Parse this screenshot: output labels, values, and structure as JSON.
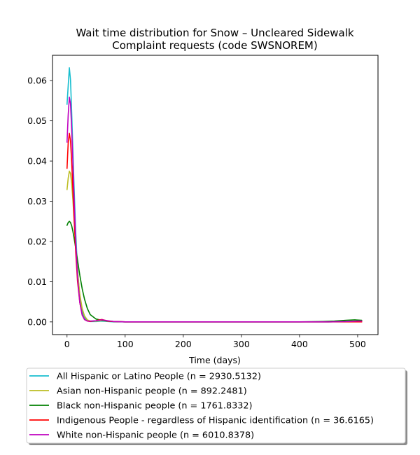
{
  "chart_data": {
    "type": "line",
    "title_lines": [
      "Wait time distribution  for Snow – Uncleared Sidewalk",
      "Complaint  requests (code SWSNOREM)"
    ],
    "xlabel": "Time (days)",
    "ylabel": "",
    "xlim": [
      -25,
      535
    ],
    "ylim": [
      -0.00316,
      0.0663
    ],
    "xticks": [
      0,
      100,
      200,
      300,
      400,
      500
    ],
    "xtick_labels": [
      "0",
      "100",
      "200",
      "300",
      "400",
      "500"
    ],
    "yticks": [
      0.0,
      0.01,
      0.02,
      0.03,
      0.04,
      0.05,
      0.06
    ],
    "ytick_labels": [
      "0.00",
      "0.01",
      "0.02",
      "0.03",
      "0.04",
      "0.05",
      "0.06"
    ],
    "grid": false,
    "legend_position": "below plot",
    "series": [
      {
        "name": "All Hispanic or Latino People (n = 2930.5132)",
        "color": "#17becf",
        "x": [
          0,
          2,
          4,
          6,
          8,
          10,
          12,
          15,
          18,
          22,
          26,
          30,
          35,
          40,
          50,
          60,
          80,
          100,
          150,
          200,
          300,
          400,
          450,
          480,
          500,
          507
        ],
        "y": [
          0.0541,
          0.0587,
          0.0632,
          0.0601,
          0.0521,
          0.0431,
          0.0341,
          0.0221,
          0.0131,
          0.0061,
          0.0025,
          0.001,
          0.0003,
          0.0001,
          0.0001,
          0.0002,
          0.0,
          0.0,
          0.0,
          0.0,
          0.0,
          0.0,
          0.0,
          0.0001,
          0.0002,
          0.0002
        ]
      },
      {
        "name": "Asian non-Hispanic people (n = 892.2481)",
        "color": "#bcbd22",
        "x": [
          0,
          2,
          4,
          6,
          8,
          10,
          12,
          15,
          18,
          22,
          26,
          30,
          35,
          40,
          50,
          60,
          80,
          100,
          150,
          200,
          300,
          400,
          450,
          480,
          500,
          507
        ],
        "y": [
          0.0329,
          0.0357,
          0.0375,
          0.0369,
          0.0344,
          0.0305,
          0.0258,
          0.0188,
          0.0127,
          0.0068,
          0.0034,
          0.0015,
          0.0005,
          0.0002,
          0.0002,
          0.0003,
          0.0001,
          0.0,
          0.0,
          0.0,
          0.0,
          0.0,
          0.0,
          0.0001,
          0.0002,
          0.0002
        ]
      },
      {
        "name": "Black non-Hispanic people (n = 1761.8332)",
        "color": "#008000",
        "x": [
          0,
          2,
          4,
          6,
          8,
          10,
          12,
          15,
          18,
          22,
          26,
          30,
          35,
          40,
          50,
          60,
          70,
          80,
          100,
          150,
          200,
          300,
          400,
          440,
          460,
          480,
          495,
          507
        ],
        "y": [
          0.024,
          0.0247,
          0.025,
          0.0247,
          0.0239,
          0.0226,
          0.021,
          0.0183,
          0.0154,
          0.0116,
          0.0083,
          0.0057,
          0.0033,
          0.0018,
          0.0007,
          0.0004,
          0.0002,
          0.0001,
          0.0,
          0.0,
          0.0,
          0.0,
          0.0,
          0.0001,
          0.0002,
          0.0004,
          0.0005,
          0.0004
        ]
      },
      {
        "name": "Indigenous People - regardless of Hispanic identification (n = 36.6165)",
        "color": "#ff0000",
        "x": [
          0,
          2,
          4,
          6,
          8,
          10,
          12,
          15,
          18,
          22,
          26,
          30,
          35,
          40,
          50,
          55,
          60,
          65,
          70,
          80,
          100,
          150,
          200,
          300,
          400,
          500,
          507
        ],
        "y": [
          0.0382,
          0.0445,
          0.0469,
          0.045,
          0.0398,
          0.0332,
          0.0264,
          0.0172,
          0.0102,
          0.0048,
          0.0018,
          0.0006,
          0.0002,
          0.0001,
          0.0003,
          0.0005,
          0.0006,
          0.0004,
          0.0002,
          0.0001,
          0.0,
          0.0,
          0.0,
          0.0,
          0.0,
          0.0,
          0.0
        ]
      },
      {
        "name": "White non-Hispanic people (n = 6010.8378)",
        "color": "#bf00bf",
        "x": [
          0,
          2,
          4,
          6,
          8,
          10,
          12,
          15,
          18,
          22,
          26,
          30,
          35,
          40,
          50,
          60,
          70,
          80,
          100,
          150,
          200,
          300,
          400,
          450,
          480,
          500,
          507
        ],
        "y": [
          0.0447,
          0.0514,
          0.0559,
          0.0542,
          0.048,
          0.0397,
          0.0312,
          0.0198,
          0.0112,
          0.0048,
          0.0017,
          0.0006,
          0.0002,
          0.0002,
          0.0003,
          0.0005,
          0.0003,
          0.0001,
          0.0,
          0.0,
          0.0,
          0.0,
          0.0,
          0.0,
          0.0001,
          0.0002,
          0.0002
        ]
      }
    ]
  }
}
